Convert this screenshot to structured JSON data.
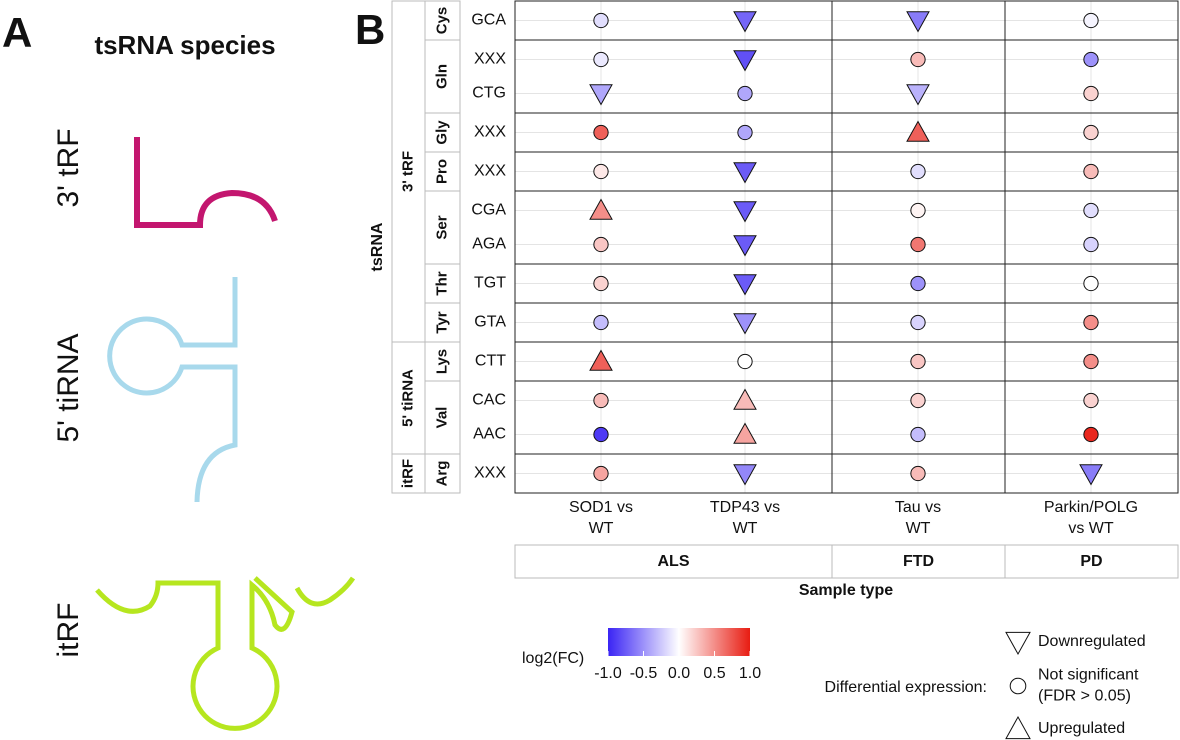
{
  "panel_a": {
    "label": "A",
    "title": "tsRNA species",
    "species": [
      {
        "name": "3' tRF",
        "color": "#c3166f"
      },
      {
        "name": "5' tiRNA",
        "color": "#a8d9ec"
      },
      {
        "name": "itRF",
        "color": "#b6e61f"
      }
    ]
  },
  "chart_data": {
    "type": "dotplot",
    "label": "B",
    "y_axis_title": "tsRNA",
    "x_axis_title": "Sample type",
    "x_groups": [
      {
        "name": "ALS",
        "samples": [
          [
            "SOD1 vs",
            "WT"
          ],
          [
            "TDP43 vs",
            "WT"
          ]
        ]
      },
      {
        "name": "FTD",
        "samples": [
          [
            "Tau vs",
            "WT"
          ]
        ]
      },
      {
        "name": "PD",
        "samples": [
          [
            "Parkin/POLG",
            "vs WT"
          ]
        ]
      }
    ],
    "y_groups": [
      {
        "name": "3' tRF",
        "amino_acids": [
          {
            "name": "Cys",
            "codons": [
              "GCA"
            ]
          },
          {
            "name": "Gln",
            "codons": [
              "XXX",
              "CTG"
            ]
          },
          {
            "name": "Gly",
            "codons": [
              "XXX"
            ]
          },
          {
            "name": "Pro",
            "codons": [
              "XXX"
            ]
          },
          {
            "name": "Ser",
            "codons": [
              "CGA",
              "AGA"
            ]
          },
          {
            "name": "Thr",
            "codons": [
              "TGT"
            ]
          },
          {
            "name": "Tyr",
            "codons": [
              "GTA"
            ]
          }
        ]
      },
      {
        "name": "5' tiRNA",
        "amino_acids": [
          {
            "name": "Lys",
            "codons": [
              "CTT"
            ]
          },
          {
            "name": "Val",
            "codons": [
              "CAC",
              "AAC"
            ]
          }
        ]
      },
      {
        "name": "itRF",
        "amino_acids": [
          {
            "name": "Arg",
            "codons": [
              "XXX"
            ]
          }
        ]
      }
    ],
    "values": [
      [
        -0.15,
        -0.7,
        -0.6,
        -0.05
      ],
      [
        -0.1,
        -0.8,
        0.3,
        -0.5
      ],
      [
        -0.4,
        -0.4,
        -0.35,
        0.2
      ],
      [
        0.7,
        -0.4,
        0.7,
        0.2
      ],
      [
        0.1,
        -0.75,
        -0.15,
        0.3
      ],
      [
        0.5,
        -0.75,
        0.05,
        -0.15
      ],
      [
        0.25,
        -0.75,
        0.6,
        -0.2
      ],
      [
        0.2,
        -0.75,
        -0.5,
        0.0
      ],
      [
        -0.3,
        -0.5,
        -0.2,
        0.5
      ],
      [
        0.7,
        0.0,
        0.25,
        0.5
      ],
      [
        0.3,
        0.3,
        0.2,
        0.2
      ],
      [
        -0.9,
        0.4,
        -0.3,
        0.95
      ],
      [
        0.4,
        -0.55,
        0.3,
        -0.6
      ]
    ],
    "shapes": [
      [
        "ns",
        "down",
        "down",
        "ns"
      ],
      [
        "ns",
        "down",
        "ns",
        "ns"
      ],
      [
        "down",
        "ns",
        "down",
        "ns"
      ],
      [
        "ns",
        "ns",
        "up",
        "ns"
      ],
      [
        "ns",
        "down",
        "ns",
        "ns"
      ],
      [
        "up",
        "down",
        "ns",
        "ns"
      ],
      [
        "ns",
        "down",
        "ns",
        "ns"
      ],
      [
        "ns",
        "down",
        "ns",
        "ns"
      ],
      [
        "ns",
        "down",
        "ns",
        "ns"
      ],
      [
        "up",
        "ns",
        "ns",
        "ns"
      ],
      [
        "ns",
        "up",
        "ns",
        "ns"
      ],
      [
        "ns",
        "up",
        "ns",
        "ns"
      ],
      [
        "ns",
        "down",
        "ns",
        "down"
      ]
    ],
    "color_legend": {
      "title": "log2(FC)",
      "lim": [
        -1,
        1
      ],
      "ticks": [
        {
          "value": -1,
          "label": "-1.0"
        },
        -0.5,
        {
          "value": 0,
          "label": "0.0"
        },
        0.5,
        {
          "value": 1,
          "label": "1.0"
        }
      ],
      "low": "#3a24f4",
      "mid": "#ffffff",
      "high": "#e81c12"
    },
    "shape_legend": {
      "title": "Differential expression:",
      "entries": [
        {
          "shape": "down",
          "label": [
            "Downregulated"
          ]
        },
        {
          "shape": "ns",
          "label": [
            "Not significant",
            "(FDR > 0.05)"
          ]
        },
        {
          "shape": "up",
          "label": [
            "Upregulated"
          ]
        }
      ]
    },
    "grid": true
  }
}
